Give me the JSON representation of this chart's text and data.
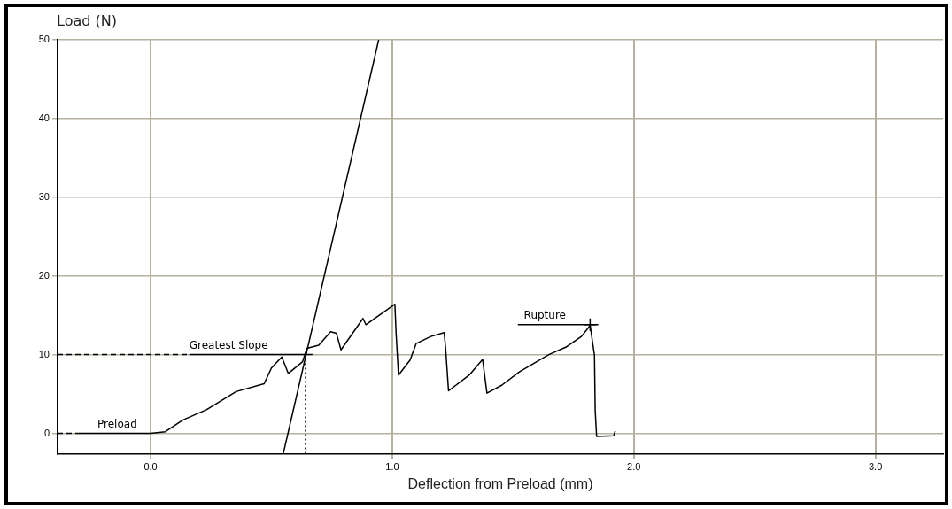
{
  "chart_data": {
    "type": "line",
    "xlabel": "Deflection from Preload (mm)",
    "ylabel": "Load (N)",
    "xlim": [
      -0.385,
      3.28
    ],
    "ylim": [
      -2.6,
      50
    ],
    "xticks": [
      {
        "value": 0,
        "label": "0.0"
      },
      {
        "value": 1,
        "label": "1.0"
      },
      {
        "value": 2,
        "label": "2.0"
      },
      {
        "value": 3,
        "label": "3.0"
      }
    ],
    "yticks": [
      0,
      10,
      20,
      30,
      40,
      50
    ],
    "grid": true,
    "legend": false,
    "marker": "none",
    "series": [
      {
        "color": "#000000",
        "line_style": "solid",
        "x": [
          -0.3,
          0,
          0.061,
          0.134,
          0.231,
          0.354,
          0.47,
          0.5,
          0.543,
          0.57,
          0.629,
          0.647,
          0.696,
          0.745,
          0.769,
          0.788,
          0.879,
          0.891,
          1.011,
          1.016,
          1.026,
          1.074,
          1.099,
          1.16,
          1.215,
          1.221,
          1.233,
          1.319,
          1.374,
          1.392,
          1.453,
          1.526,
          1.648,
          1.722,
          1.783,
          1.819,
          1.837,
          1.84,
          1.846,
          1.917,
          1.923
        ],
        "values": [
          0,
          0,
          0.2,
          1.7,
          3.0,
          5.3,
          6.3,
          8.3,
          9.7,
          7.6,
          9.1,
          10.8,
          11.2,
          12.9,
          12.7,
          10.6,
          14.6,
          13.8,
          16.4,
          12.7,
          7.4,
          9.3,
          11.4,
          12.3,
          12.8,
          10.8,
          5.4,
          7.4,
          9.4,
          5.1,
          6.1,
          7.8,
          10.0,
          11.0,
          12.3,
          13.7,
          9.9,
          2.9,
          -0.4,
          -0.3,
          0.3
        ]
      },
      {
        "color": "#000000",
        "line_style": "solid",
        "x": [
          0.549,
          0.944
        ],
        "values": [
          -2.6,
          50
        ]
      },
      {
        "color": "#000000",
        "line_style": "dashed",
        "x": [
          -0.385,
          0.16
        ],
        "values": [
          10,
          10
        ]
      },
      {
        "color": "#000000",
        "line_style": "solid",
        "x": [
          0.16,
          0.67
        ],
        "values": [
          10,
          10
        ]
      },
      {
        "color": "#000000",
        "line_style": "dotted",
        "x": [
          0.641,
          0.641
        ],
        "values": [
          -2.6,
          10
        ]
      },
      {
        "color": "#000000",
        "line_style": "dashed",
        "x": [
          -0.385,
          -0.3
        ],
        "values": [
          0,
          0
        ]
      },
      {
        "color": "#000000",
        "line_style": "solid",
        "x": [
          1.52,
          1.853
        ],
        "values": [
          13.8,
          13.8
        ]
      },
      {
        "type": "scatter",
        "color": "#000000",
        "marker": "cross",
        "x": [
          1.819
        ],
        "values": [
          13.8
        ]
      }
    ],
    "annotations": [
      {
        "text": "Preload",
        "x": -0.22,
        "y": 0
      },
      {
        "text": "Greatest Slope",
        "x": 0.16,
        "y": 10
      },
      {
        "text": "Rupture",
        "x": 1.545,
        "y": 13.8
      }
    ]
  }
}
